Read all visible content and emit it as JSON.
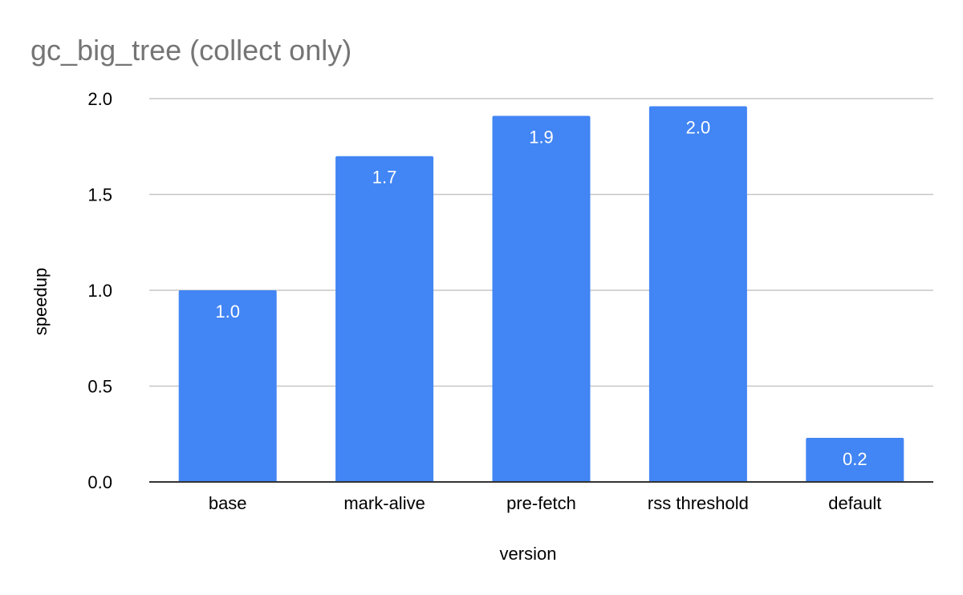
{
  "chart_data": {
    "type": "bar",
    "title": "gc_big_tree (collect only)",
    "xlabel": "version",
    "ylabel": "speedup",
    "categories": [
      "base",
      "mark-alive",
      "pre-fetch",
      "rss threshold",
      "default"
    ],
    "values": [
      1.0,
      1.7,
      1.91,
      1.96,
      0.23
    ],
    "data_labels": [
      "1.0",
      "1.7",
      "1.9",
      "2.0",
      "0.2"
    ],
    "ylim": [
      0,
      2
    ],
    "yticks": [
      0,
      0.5,
      1,
      1.5,
      2
    ],
    "ytick_labels": [
      "0.0",
      "0.5",
      "1.0",
      "1.5",
      "2.0"
    ],
    "grid": true,
    "legend": "none",
    "bar_color": "#4285f4"
  }
}
